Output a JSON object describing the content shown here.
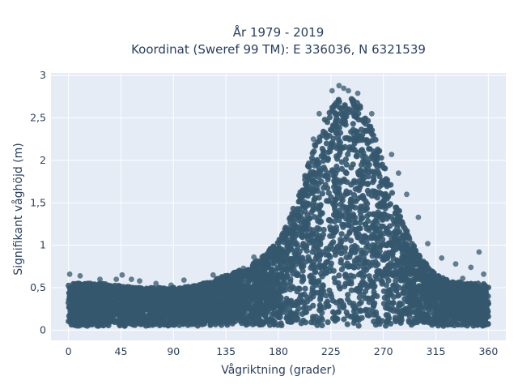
{
  "chart_data": {
    "type": "scatter",
    "title_line1": "År 1979 - 2019",
    "title_line2": "Koordinat (Sweref 99 TM): E 336036, N 6321539",
    "xlabel": "Vågriktning (grader)",
    "ylabel": "Signifikant våghöjd (m)",
    "xlim": [
      -15,
      375
    ],
    "ylim": [
      -0.12,
      3.03
    ],
    "x_ticks": [
      {
        "value": 0,
        "label": "0"
      },
      {
        "value": 45,
        "label": "45"
      },
      {
        "value": 90,
        "label": "90"
      },
      {
        "value": 135,
        "label": "135"
      },
      {
        "value": 180,
        "label": "180"
      },
      {
        "value": 225,
        "label": "225"
      },
      {
        "value": 270,
        "label": "270"
      },
      {
        "value": 315,
        "label": "315"
      },
      {
        "value": 360,
        "label": "360"
      }
    ],
    "y_ticks": [
      {
        "value": 0,
        "label": "0"
      },
      {
        "value": 0.5,
        "label": "0,5"
      },
      {
        "value": 1,
        "label": "1"
      },
      {
        "value": 1.5,
        "label": "1,5"
      },
      {
        "value": 2,
        "label": "2"
      },
      {
        "value": 2.5,
        "label": "2,5"
      },
      {
        "value": 3,
        "label": "3"
      }
    ],
    "grid": true,
    "marker_color": "#34586e",
    "plot_background": "#e5ecf6",
    "dense_band_upper_envelope": [
      [
        0,
        0.55
      ],
      [
        15,
        0.55
      ],
      [
        30,
        0.55
      ],
      [
        45,
        0.52
      ],
      [
        60,
        0.5
      ],
      [
        75,
        0.5
      ],
      [
        90,
        0.5
      ],
      [
        105,
        0.52
      ],
      [
        120,
        0.57
      ],
      [
        135,
        0.65
      ],
      [
        150,
        0.72
      ],
      [
        165,
        0.85
      ],
      [
        180,
        1.05
      ],
      [
        190,
        1.35
      ],
      [
        200,
        1.7
      ],
      [
        210,
        2.15
      ],
      [
        218,
        2.45
      ],
      [
        225,
        2.65
      ],
      [
        232,
        2.72
      ],
      [
        240,
        2.78
      ],
      [
        248,
        2.7
      ],
      [
        255,
        2.55
      ],
      [
        262,
        2.3
      ],
      [
        270,
        2.0
      ],
      [
        278,
        1.65
      ],
      [
        285,
        1.35
      ],
      [
        292,
        1.1
      ],
      [
        300,
        0.9
      ],
      [
        310,
        0.72
      ],
      [
        320,
        0.62
      ],
      [
        330,
        0.58
      ],
      [
        340,
        0.55
      ],
      [
        350,
        0.55
      ],
      [
        360,
        0.55
      ]
    ],
    "dense_band_lower_bound": 0.05,
    "notable_points": [
      {
        "x": 1,
        "y": 0.66
      },
      {
        "x": 10,
        "y": 0.64
      },
      {
        "x": 27,
        "y": 0.6
      },
      {
        "x": 41,
        "y": 0.6
      },
      {
        "x": 46,
        "y": 0.65
      },
      {
        "x": 54,
        "y": 0.6
      },
      {
        "x": 61,
        "y": 0.58
      },
      {
        "x": 75,
        "y": 0.55
      },
      {
        "x": 88,
        "y": 0.53
      },
      {
        "x": 99,
        "y": 0.59
      },
      {
        "x": 124,
        "y": 0.65
      },
      {
        "x": 150,
        "y": 0.73
      },
      {
        "x": 159,
        "y": 0.86
      },
      {
        "x": 210,
        "y": 2.25
      },
      {
        "x": 215,
        "y": 2.55
      },
      {
        "x": 226,
        "y": 2.82
      },
      {
        "x": 232,
        "y": 2.88
      },
      {
        "x": 236,
        "y": 2.85
      },
      {
        "x": 240,
        "y": 2.82
      },
      {
        "x": 248,
        "y": 2.79
      },
      {
        "x": 260,
        "y": 2.55
      },
      {
        "x": 277,
        "y": 2.07
      },
      {
        "x": 283,
        "y": 1.85
      },
      {
        "x": 290,
        "y": 1.6
      },
      {
        "x": 300,
        "y": 1.33
      },
      {
        "x": 308,
        "y": 1.02
      },
      {
        "x": 320,
        "y": 0.85
      },
      {
        "x": 332,
        "y": 0.78
      },
      {
        "x": 345,
        "y": 0.74
      },
      {
        "x": 352,
        "y": 0.92
      },
      {
        "x": 356,
        "y": 0.66
      },
      {
        "x": 322,
        "y": 0.59
      },
      {
        "x": 338,
        "y": 0.61
      }
    ]
  }
}
